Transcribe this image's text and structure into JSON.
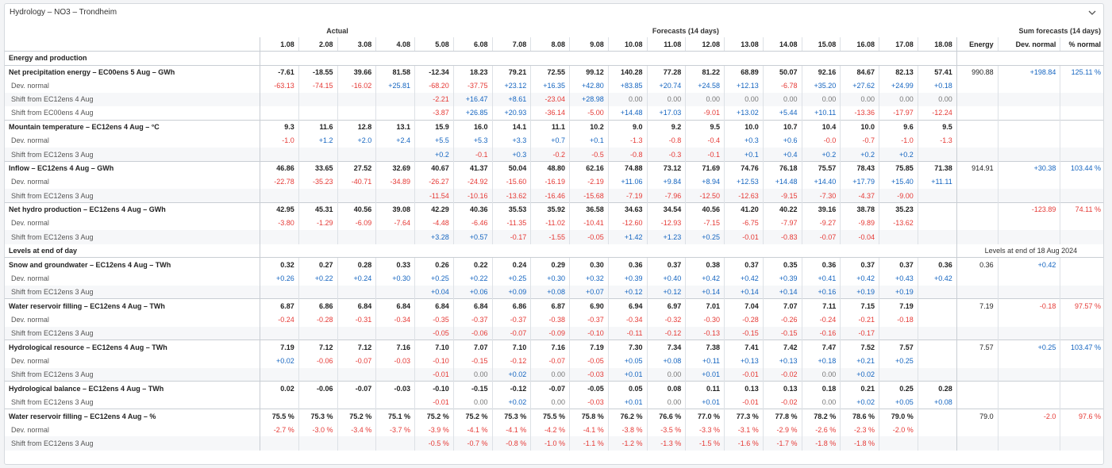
{
  "title": "Hydrology – NO3 – Trondheim",
  "header": {
    "group_actual": "Actual",
    "group_forecasts": "Forecasts (14 days)",
    "group_sum": "Sum forecasts (14 days)",
    "dates": [
      "1.08",
      "2.08",
      "3.08",
      "4.08",
      "5.08",
      "6.08",
      "7.08",
      "8.08",
      "9.08",
      "10.08",
      "11.08",
      "12.08",
      "13.08",
      "14.08",
      "15.08",
      "16.08",
      "17.08",
      "18.08"
    ],
    "sum_cols": [
      "Energy",
      "Dev. normal",
      "% normal"
    ]
  },
  "rows": [
    {
      "type": "section",
      "label": "Energy and production"
    },
    {
      "type": "main",
      "label": "Net precipitation energy – EC00ens 5 Aug – GWh",
      "values": [
        "-7.61",
        "-18.55",
        "39.66",
        "81.58",
        "-12.34",
        "18.23",
        "79.21",
        "72.55",
        "99.12",
        "140.28",
        "77.28",
        "81.22",
        "68.89",
        "50.07",
        "92.16",
        "84.67",
        "82.13",
        "57.41"
      ],
      "sums": [
        "990.88",
        "+198.84",
        "125.11 %"
      ]
    },
    {
      "type": "sub",
      "label": "Dev. normal",
      "values": [
        "-63.13",
        "-74.15",
        "-16.02",
        "+25.81",
        "-68.20",
        "-37.75",
        "+23.12",
        "+16.35",
        "+42.80",
        "+83.85",
        "+20.74",
        "+24.58",
        "+12.13",
        "-6.78",
        "+35.20",
        "+27.62",
        "+24.99",
        "+0.18"
      ],
      "sums": [
        "",
        "",
        ""
      ]
    },
    {
      "type": "sub",
      "label": "Shift from EC12ens 4 Aug",
      "values": [
        "",
        "",
        "",
        "",
        "-2.21",
        "+16.47",
        "+8.61",
        "-23.04",
        "+28.98",
        "0.00",
        "0.00",
        "0.00",
        "0.00",
        "0.00",
        "0.00",
        "0.00",
        "0.00",
        "0.00"
      ],
      "sums": [
        "",
        "",
        ""
      ]
    },
    {
      "type": "sub",
      "label": "Shift from EC00ens 4 Aug",
      "values": [
        "",
        "",
        "",
        "",
        "-3.87",
        "+26.85",
        "+20.93",
        "-36.14",
        "-5.00",
        "+14.48",
        "+17.03",
        "-9.01",
        "+13.02",
        "+5.44",
        "+10.11",
        "-13.36",
        "-17.97",
        "-12.24"
      ],
      "sums": [
        "",
        "",
        ""
      ]
    },
    {
      "type": "main",
      "label": "Mountain temperature – EC12ens 4 Aug – °C",
      "values": [
        "9.3",
        "11.6",
        "12.8",
        "13.1",
        "15.9",
        "16.0",
        "14.1",
        "11.1",
        "10.2",
        "9.0",
        "9.2",
        "9.5",
        "10.0",
        "10.7",
        "10.4",
        "10.0",
        "9.6",
        "9.5"
      ],
      "sums": [
        "",
        "",
        ""
      ]
    },
    {
      "type": "sub",
      "label": "Dev. normal",
      "values": [
        "-1.0",
        "+1.2",
        "+2.0",
        "+2.4",
        "+5.5",
        "+5.3",
        "+3.3",
        "+0.7",
        "+0.1",
        "-1.3",
        "-0.8",
        "-0.4",
        "+0.3",
        "+0.6",
        "-0.0",
        "-0.7",
        "-1.0",
        "-1.3"
      ],
      "sums": [
        "",
        "",
        ""
      ]
    },
    {
      "type": "sub",
      "label": "Shift from EC12ens 3 Aug",
      "values": [
        "",
        "",
        "",
        "",
        "+0.2",
        "-0.1",
        "+0.3",
        "-0.2",
        "-0.5",
        "-0.8",
        "-0.3",
        "-0.1",
        "+0.1",
        "+0.4",
        "+0.2",
        "+0.2",
        "+0.2",
        ""
      ],
      "sums": [
        "",
        "",
        ""
      ]
    },
    {
      "type": "main",
      "label": "Inflow – EC12ens 4 Aug – GWh",
      "values": [
        "46.86",
        "33.65",
        "27.52",
        "32.69",
        "40.67",
        "41.37",
        "50.04",
        "48.80",
        "62.16",
        "74.88",
        "73.12",
        "71.69",
        "74.76",
        "76.18",
        "75.57",
        "78.43",
        "75.85",
        "71.38"
      ],
      "sums": [
        "914.91",
        "+30.38",
        "103.44 %"
      ]
    },
    {
      "type": "sub",
      "label": "Dev. normal",
      "values": [
        "-22.78",
        "-35.23",
        "-40.71",
        "-34.89",
        "-26.27",
        "-24.92",
        "-15.60",
        "-16.19",
        "-2.19",
        "+11.06",
        "+9.84",
        "+8.94",
        "+12.53",
        "+14.48",
        "+14.40",
        "+17.79",
        "+15.40",
        "+11.11"
      ],
      "sums": [
        "",
        "",
        ""
      ]
    },
    {
      "type": "sub",
      "label": "Shift from EC12ens 3 Aug",
      "values": [
        "",
        "",
        "",
        "",
        "-11.54",
        "-10.16",
        "-13.62",
        "-16.46",
        "-15.68",
        "-7.19",
        "-7.96",
        "-12.50",
        "-12.63",
        "-9.15",
        "-7.30",
        "-4.37",
        "-9.00",
        ""
      ],
      "sums": [
        "",
        "",
        ""
      ]
    },
    {
      "type": "main",
      "label": "Net hydro production – EC12ens 4 Aug – GWh",
      "values": [
        "42.95",
        "45.31",
        "40.56",
        "39.08",
        "42.29",
        "40.36",
        "35.53",
        "35.92",
        "36.58",
        "34.63",
        "34.54",
        "40.56",
        "41.20",
        "40.22",
        "39.16",
        "38.78",
        "35.23",
        ""
      ],
      "sums": [
        "",
        "-123.89",
        "74.11 %"
      ]
    },
    {
      "type": "sub",
      "label": "Dev. normal",
      "values": [
        "-3.80",
        "-1.29",
        "-6.09",
        "-7.64",
        "-4.48",
        "-6.46",
        "-11.35",
        "-11.02",
        "-10.41",
        "-12.60",
        "-12.93",
        "-7.15",
        "-6.75",
        "-7.97",
        "-9.27",
        "-9.89",
        "-13.62",
        ""
      ],
      "sums": [
        "",
        "",
        ""
      ]
    },
    {
      "type": "sub",
      "label": "Shift from EC12ens 3 Aug",
      "values": [
        "",
        "",
        "",
        "",
        "+3.28",
        "+0.57",
        "-0.17",
        "-1.55",
        "-0.05",
        "+1.42",
        "+1.23",
        "+0.25",
        "-0.01",
        "-0.83",
        "-0.07",
        "-0.04",
        "",
        ""
      ],
      "sums": [
        "",
        "",
        ""
      ]
    },
    {
      "type": "section",
      "label": "Levels at end of day",
      "note": "Levels at end of 18 Aug 2024"
    },
    {
      "type": "main",
      "label": "Snow and groundwater – EC12ens 4 Aug – TWh",
      "values": [
        "0.32",
        "0.27",
        "0.28",
        "0.33",
        "0.26",
        "0.22",
        "0.24",
        "0.29",
        "0.30",
        "0.36",
        "0.37",
        "0.38",
        "0.37",
        "0.35",
        "0.36",
        "0.37",
        "0.37",
        "0.36"
      ],
      "sums": [
        "0.36",
        "+0.42",
        ""
      ]
    },
    {
      "type": "sub",
      "label": "Dev. normal",
      "values": [
        "+0.26",
        "+0.22",
        "+0.24",
        "+0.30",
        "+0.25",
        "+0.22",
        "+0.25",
        "+0.30",
        "+0.32",
        "+0.39",
        "+0.40",
        "+0.42",
        "+0.42",
        "+0.39",
        "+0.41",
        "+0.42",
        "+0.43",
        "+0.42"
      ],
      "sums": [
        "",
        "",
        ""
      ]
    },
    {
      "type": "sub",
      "label": "Shift from EC12ens 3 Aug",
      "values": [
        "",
        "",
        "",
        "",
        "+0.04",
        "+0.06",
        "+0.09",
        "+0.08",
        "+0.07",
        "+0.12",
        "+0.12",
        "+0.14",
        "+0.14",
        "+0.14",
        "+0.16",
        "+0.19",
        "+0.19",
        ""
      ],
      "sums": [
        "",
        "",
        ""
      ]
    },
    {
      "type": "main",
      "label": "Water reservoir filling – EC12ens 4 Aug – TWh",
      "values": [
        "6.87",
        "6.86",
        "6.84",
        "6.84",
        "6.84",
        "6.84",
        "6.86",
        "6.87",
        "6.90",
        "6.94",
        "6.97",
        "7.01",
        "7.04",
        "7.07",
        "7.11",
        "7.15",
        "7.19",
        ""
      ],
      "sums": [
        "7.19",
        "-0.18",
        "97.57 %"
      ]
    },
    {
      "type": "sub",
      "label": "Dev. normal",
      "values": [
        "-0.24",
        "-0.28",
        "-0.31",
        "-0.34",
        "-0.35",
        "-0.37",
        "-0.37",
        "-0.38",
        "-0.37",
        "-0.34",
        "-0.32",
        "-0.30",
        "-0.28",
        "-0.26",
        "-0.24",
        "-0.21",
        "-0.18",
        ""
      ],
      "sums": [
        "",
        "",
        ""
      ]
    },
    {
      "type": "sub",
      "label": "Shift from EC12ens 3 Aug",
      "values": [
        "",
        "",
        "",
        "",
        "-0.05",
        "-0.06",
        "-0.07",
        "-0.09",
        "-0.10",
        "-0.11",
        "-0.12",
        "-0.13",
        "-0.15",
        "-0.15",
        "-0.16",
        "-0.17",
        "",
        ""
      ],
      "sums": [
        "",
        "",
        ""
      ]
    },
    {
      "type": "main",
      "label": "Hydrological resource – EC12ens 4 Aug – TWh",
      "values": [
        "7.19",
        "7.12",
        "7.12",
        "7.16",
        "7.10",
        "7.07",
        "7.10",
        "7.16",
        "7.19",
        "7.30",
        "7.34",
        "7.38",
        "7.41",
        "7.42",
        "7.47",
        "7.52",
        "7.57",
        ""
      ],
      "sums": [
        "7.57",
        "+0.25",
        "103.47 %"
      ]
    },
    {
      "type": "sub",
      "label": "Dev. normal",
      "values": [
        "+0.02",
        "-0.06",
        "-0.07",
        "-0.03",
        "-0.10",
        "-0.15",
        "-0.12",
        "-0.07",
        "-0.05",
        "+0.05",
        "+0.08",
        "+0.11",
        "+0.13",
        "+0.13",
        "+0.18",
        "+0.21",
        "+0.25",
        ""
      ],
      "sums": [
        "",
        "",
        ""
      ]
    },
    {
      "type": "sub",
      "label": "Shift from EC12ens 3 Aug",
      "values": [
        "",
        "",
        "",
        "",
        "-0.01",
        "0.00",
        "+0.02",
        "0.00",
        "-0.03",
        "+0.01",
        "0.00",
        "+0.01",
        "-0.01",
        "-0.02",
        "0.00",
        "+0.02",
        "",
        ""
      ],
      "sums": [
        "",
        "",
        ""
      ]
    },
    {
      "type": "main",
      "label": "Hydrological balance – EC12ens 4 Aug – TWh",
      "values": [
        "0.02",
        "-0.06",
        "-0.07",
        "-0.03",
        "-0.10",
        "-0.15",
        "-0.12",
        "-0.07",
        "-0.05",
        "0.05",
        "0.08",
        "0.11",
        "0.13",
        "0.13",
        "0.18",
        "0.21",
        "0.25",
        "0.28"
      ],
      "sums": [
        "",
        "",
        ""
      ]
    },
    {
      "type": "sub",
      "label": "Shift from EC12ens 3 Aug",
      "values": [
        "",
        "",
        "",
        "",
        "-0.01",
        "0.00",
        "+0.02",
        "0.00",
        "-0.03",
        "+0.01",
        "0.00",
        "+0.01",
        "-0.01",
        "-0.02",
        "0.00",
        "+0.02",
        "+0.05",
        "+0.08"
      ],
      "sums": [
        "",
        "",
        ""
      ]
    },
    {
      "type": "main",
      "label": "Water reservoir filling – EC12ens 4 Aug – %",
      "values": [
        "75.5 %",
        "75.3 %",
        "75.2 %",
        "75.1 %",
        "75.2 %",
        "75.2 %",
        "75.3 %",
        "75.5 %",
        "75.8 %",
        "76.2 %",
        "76.6 %",
        "77.0 %",
        "77.3 %",
        "77.8 %",
        "78.2 %",
        "78.6 %",
        "79.0 %",
        ""
      ],
      "sums": [
        "79.0",
        "-2.0",
        "97.6 %"
      ]
    },
    {
      "type": "sub",
      "label": "Dev. normal",
      "values": [
        "-2.7 %",
        "-3.0 %",
        "-3.4 %",
        "-3.7 %",
        "-3.9 %",
        "-4.1 %",
        "-4.1 %",
        "-4.2 %",
        "-4.1 %",
        "-3.8 %",
        "-3.5 %",
        "-3.3 %",
        "-3.1 %",
        "-2.9 %",
        "-2.6 %",
        "-2.3 %",
        "-2.0 %",
        ""
      ],
      "sums": [
        "",
        "",
        ""
      ]
    },
    {
      "type": "sub",
      "label": "Shift from EC12ens 3 Aug",
      "values": [
        "",
        "",
        "",
        "",
        "-0.5 %",
        "-0.7 %",
        "-0.8 %",
        "-1.0 %",
        "-1.1 %",
        "-1.2 %",
        "-1.3 %",
        "-1.5 %",
        "-1.6 %",
        "-1.7 %",
        "-1.8 %",
        "-1.8 %",
        "",
        ""
      ],
      "sums": [
        "",
        "",
        ""
      ]
    }
  ]
}
